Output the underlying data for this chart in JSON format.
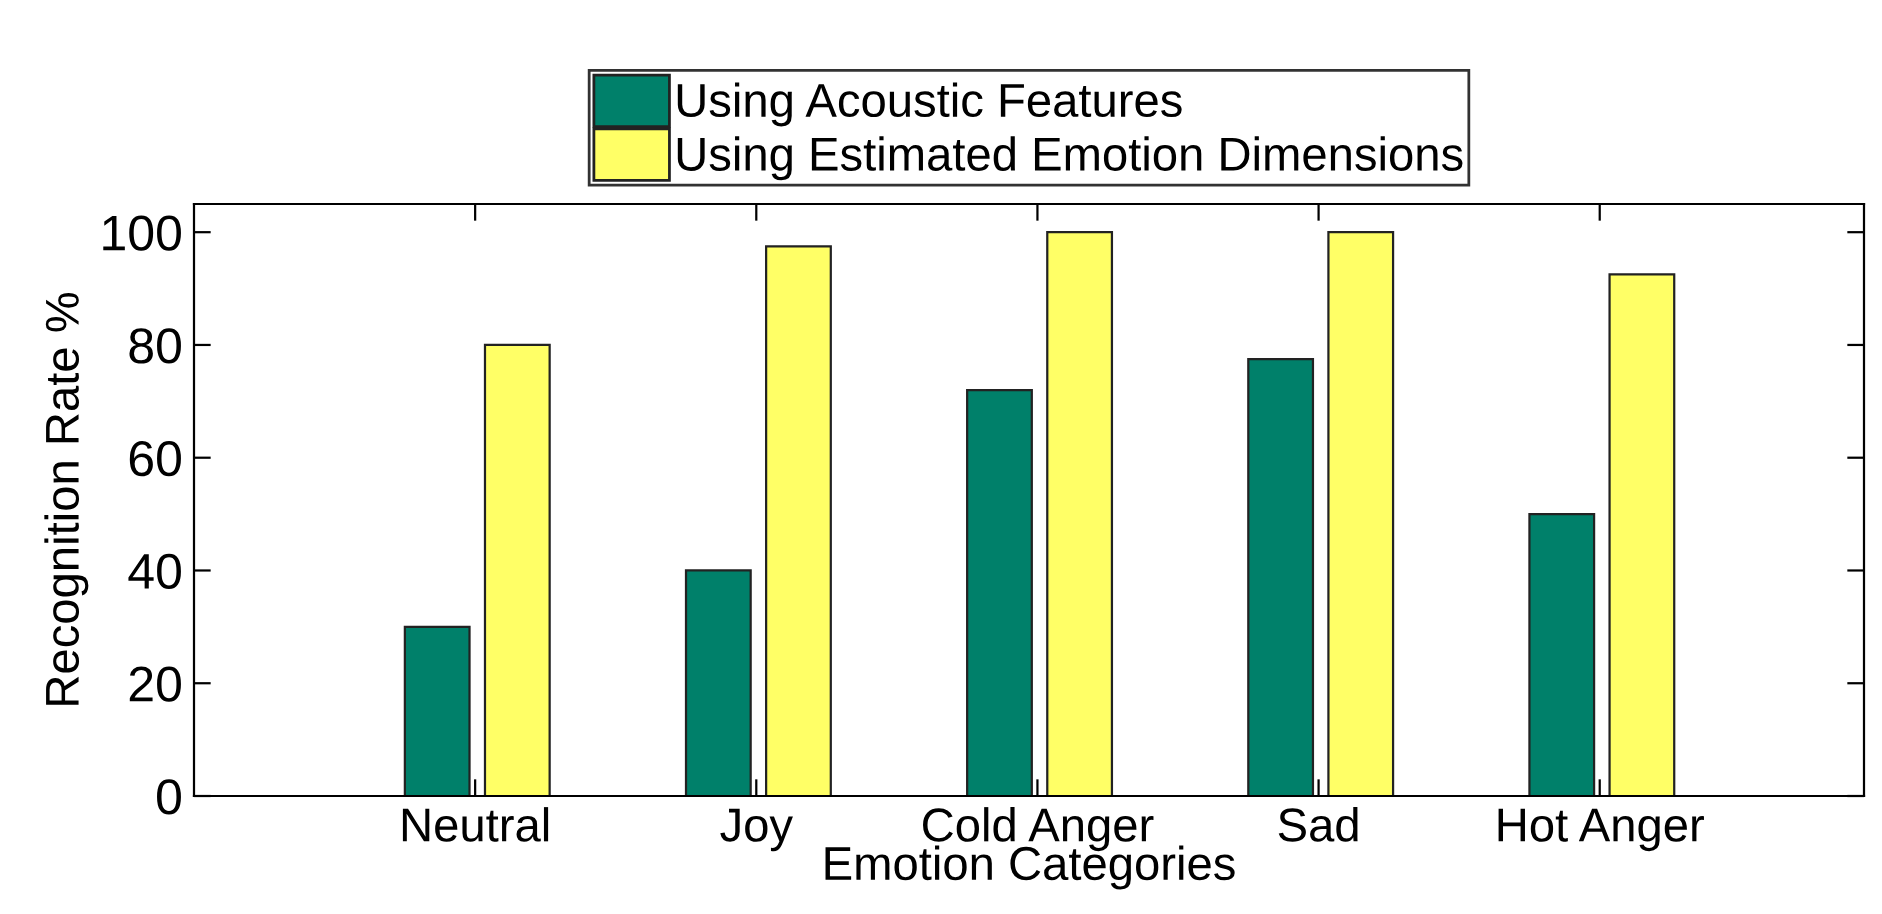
{
  "chart_data": {
    "type": "bar",
    "xlabel": "Emotion Categories",
    "ylabel": "Recognition Rate %",
    "categories": [
      "Neutral",
      "Joy",
      "Cold Anger",
      "Sad",
      "Hot Anger"
    ],
    "series": [
      {
        "name": "Using Acoustic Features",
        "color": "#00806a",
        "values": [
          30,
          40,
          72,
          77.5,
          50
        ]
      },
      {
        "name": "Using Estimated Emotion Dimensions",
        "color": "#ffff66",
        "values": [
          80,
          97.5,
          100,
          100,
          92.5
        ]
      }
    ],
    "ylim": [
      0,
      105
    ],
    "yticks": [
      0,
      20,
      40,
      60,
      80,
      100
    ],
    "grid": false,
    "legend": "top"
  }
}
